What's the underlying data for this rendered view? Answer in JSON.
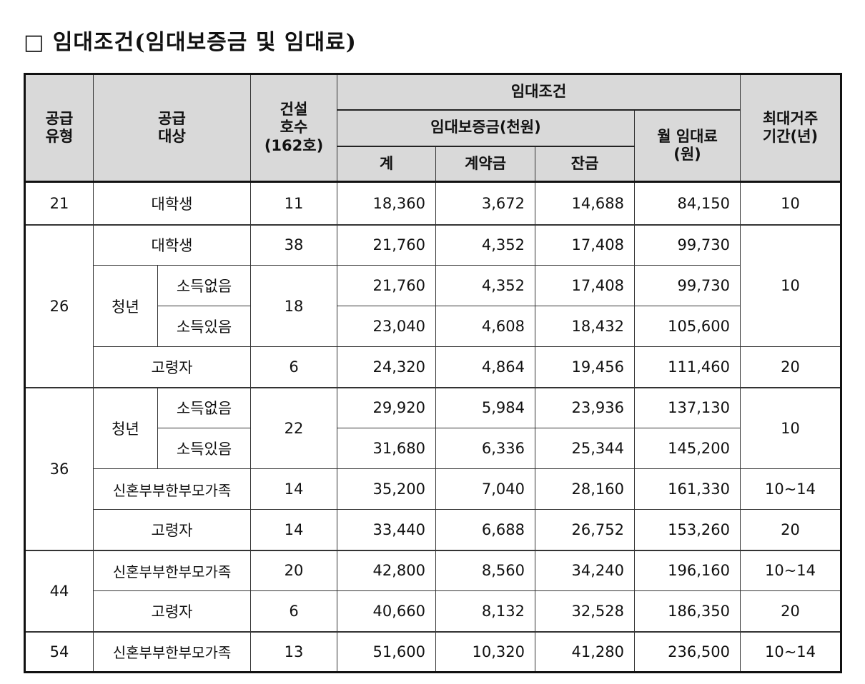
{
  "title": "□ 임대조건(임대보증금 및 임대료)",
  "headers": {
    "supply_type": "공급\n유형",
    "supply_target": "공급\n대상",
    "units": "건설\n호수\n(162호)",
    "lease_conditions": "임대조건",
    "deposit": "임대보증금(천원)",
    "total": "계",
    "down_payment": "계약금",
    "balance": "잔금",
    "monthly_rent": "월 임대료\n(원)",
    "max_residence": "최대거주\n기간(년)"
  },
  "rows": [
    {
      "type": "21",
      "target": "대학생",
      "units": "11",
      "total": "18,360",
      "down": "3,672",
      "balance": "14,688",
      "rent": "84,150",
      "period": "10"
    },
    {
      "type": "26",
      "target": "대학생",
      "units": "38",
      "total": "21,760",
      "down": "4,352",
      "balance": "17,408",
      "rent": "99,730",
      "period": "10"
    },
    {
      "group": "청년",
      "target": "소득없음",
      "units": "18",
      "total": "21,760",
      "down": "4,352",
      "balance": "17,408",
      "rent": "99,730"
    },
    {
      "target": "소득있음",
      "total": "23,040",
      "down": "4,608",
      "balance": "18,432",
      "rent": "105,600"
    },
    {
      "target": "고령자",
      "units": "6",
      "total": "24,320",
      "down": "4,864",
      "balance": "19,456",
      "rent": "111,460",
      "period": "20"
    },
    {
      "type": "36",
      "group": "청년",
      "target": "소득없음",
      "units": "22",
      "total": "29,920",
      "down": "5,984",
      "balance": "23,936",
      "rent": "137,130",
      "period": "10"
    },
    {
      "target": "소득있음",
      "total": "31,680",
      "down": "6,336",
      "balance": "25,344",
      "rent": "145,200"
    },
    {
      "target": "신혼부부한부모가족",
      "units": "14",
      "total": "35,200",
      "down": "7,040",
      "balance": "28,160",
      "rent": "161,330",
      "period": "10~14"
    },
    {
      "target": "고령자",
      "units": "14",
      "total": "33,440",
      "down": "6,688",
      "balance": "26,752",
      "rent": "153,260",
      "period": "20"
    },
    {
      "type": "44",
      "target": "신혼부부한부모가족",
      "units": "20",
      "total": "42,800",
      "down": "8,560",
      "balance": "34,240",
      "rent": "196,160",
      "period": "10~14"
    },
    {
      "target": "고령자",
      "units": "6",
      "total": "40,660",
      "down": "8,132",
      "balance": "32,528",
      "rent": "186,350",
      "period": "20"
    },
    {
      "type": "54",
      "target": "신혼부부한부모가족",
      "units": "13",
      "total": "51,600",
      "down": "10,320",
      "balance": "41,280",
      "rent": "236,500",
      "period": "10~14"
    }
  ]
}
